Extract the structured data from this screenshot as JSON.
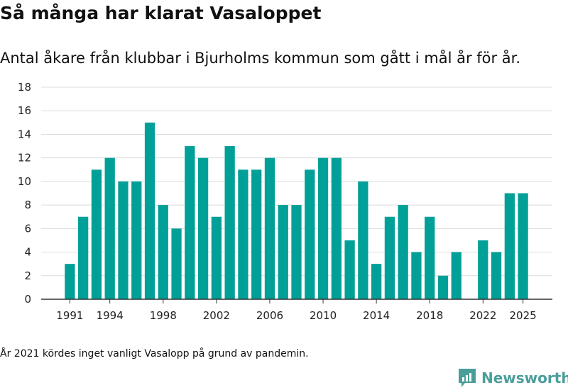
{
  "title": "Så många har klarat Vasaloppet",
  "subtitle": "Antal åkare från klubbar i Bjurholms kommun som gått i mål år för år.",
  "footnote": "År 2021 kördes inget vanligt Vasalopp på grund av pandemin.",
  "brand": {
    "name": "Newsworthy",
    "icon": "newsworthy-logo-icon",
    "color": "#4a9e9a"
  },
  "colors": {
    "bar": "#00a098",
    "grid": "#dcdcdc",
    "axis": "#333333"
  },
  "chart_data": {
    "type": "bar",
    "title": "Så många har klarat Vasaloppet",
    "xlabel": "",
    "ylabel": "",
    "ylim": [
      0,
      18
    ],
    "yticks": [
      0,
      2,
      4,
      6,
      8,
      10,
      12,
      14,
      16,
      18
    ],
    "xticks": [
      1991,
      1994,
      1998,
      2002,
      2006,
      2010,
      2014,
      2018,
      2022,
      2025
    ],
    "grid": true,
    "x": [
      1991,
      1992,
      1993,
      1994,
      1995,
      1996,
      1997,
      1998,
      1999,
      2000,
      2001,
      2002,
      2003,
      2004,
      2005,
      2006,
      2007,
      2008,
      2009,
      2010,
      2011,
      2012,
      2013,
      2014,
      2015,
      2016,
      2017,
      2018,
      2019,
      2020,
      2021,
      2022,
      2023,
      2024,
      2025
    ],
    "values": [
      3,
      7,
      11,
      12,
      10,
      10,
      15,
      8,
      6,
      13,
      12,
      7,
      13,
      11,
      11,
      12,
      8,
      8,
      11,
      12,
      12,
      5,
      10,
      3,
      7,
      8,
      4,
      7,
      2,
      4,
      null,
      5,
      4,
      9,
      9
    ]
  }
}
